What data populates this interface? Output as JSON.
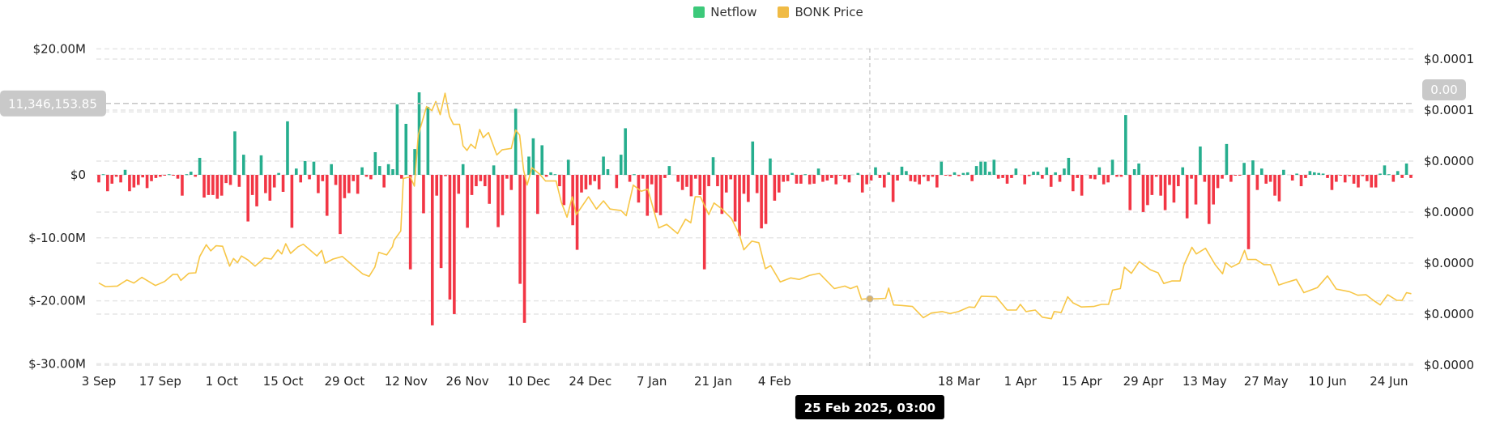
{
  "legend": {
    "items": [
      {
        "label": "Netflow",
        "color": "#3cc97a"
      },
      {
        "label": "BONK Price",
        "color": "#f0bb45"
      }
    ]
  },
  "crosshair": {
    "y_value_label": "11,346,153.85",
    "right_value_label": "0.00",
    "date_label": "25 Feb 2025, 03:00",
    "day": 175.7,
    "netflow_value_m": 11.35
  },
  "chart_data": {
    "type": "bar+line",
    "x_unit": "days since 3 Sep 2024 (daily)",
    "x_ticks": [
      {
        "day": 0,
        "label": "3 Sep"
      },
      {
        "day": 14,
        "label": "17 Sep"
      },
      {
        "day": 28,
        "label": "1 Oct"
      },
      {
        "day": 42,
        "label": "15 Oct"
      },
      {
        "day": 56,
        "label": "29 Oct"
      },
      {
        "day": 70,
        "label": "12 Nov"
      },
      {
        "day": 84,
        "label": "26 Nov"
      },
      {
        "day": 98,
        "label": "10 Dec"
      },
      {
        "day": 112,
        "label": "24 Dec"
      },
      {
        "day": 126,
        "label": "7 Jan"
      },
      {
        "day": 140,
        "label": "21 Jan"
      },
      {
        "day": 154,
        "label": "4 Feb"
      },
      {
        "day": 196,
        "label": "18 Mar"
      },
      {
        "day": 210,
        "label": "1 Apr"
      },
      {
        "day": 224,
        "label": "15 Apr"
      },
      {
        "day": 238,
        "label": "29 Apr"
      },
      {
        "day": 252,
        "label": "13 May"
      },
      {
        "day": 266,
        "label": "27 May"
      },
      {
        "day": 280,
        "label": "10 Jun"
      },
      {
        "day": 294,
        "label": "24 Jun"
      }
    ],
    "left_axis": {
      "unit": "USD millions",
      "range": [
        -30,
        20
      ],
      "ticks": [
        {
          "value": 20,
          "label": "$20.00M"
        },
        {
          "value": 0,
          "label": "$0"
        },
        {
          "value": -10,
          "label": "$-10.00M"
        },
        {
          "value": -20,
          "label": "$-20.00M"
        },
        {
          "value": -30,
          "label": "$-30.00M"
        }
      ],
      "grid_values": [
        20,
        10,
        0,
        -10,
        -20,
        -30
      ]
    },
    "right_axis": {
      "unit": "USD x 1e-5",
      "range": [
        0,
        6
      ],
      "ticks": [
        {
          "value": 6,
          "label": "$0.0001"
        },
        {
          "value": 5,
          "label": "$0.0001"
        },
        {
          "value": 4,
          "label": "$0.0000"
        },
        {
          "value": 3,
          "label": "$0.0000"
        },
        {
          "value": 2,
          "label": "$0.0000"
        },
        {
          "value": 1,
          "label": "$0.0000"
        },
        {
          "value": 0,
          "label": "$0.0000"
        }
      ]
    },
    "colors": {
      "positive": "#26ae8e",
      "negative": "#f23645",
      "price": "#f7c646",
      "grid": "#e6e6e6",
      "crosshair": "#c4c4c4"
    },
    "series": [
      {
        "name": "Netflow",
        "unit": "USD millions",
        "values": [
          -1.2,
          0.1,
          -2.6,
          -1.4,
          -0.3,
          -1.2,
          0.8,
          -2.6,
          -2.0,
          -1.6,
          -0.4,
          -2.1,
          -1.0,
          -0.5,
          -0.3,
          -0.1,
          0.1,
          -0.1,
          -0.6,
          -3.3,
          0.1,
          0.5,
          -0.3,
          2.7,
          -3.6,
          -3.2,
          -3.2,
          -3.8,
          -3.3,
          -1.3,
          -1.6,
          6.9,
          -1.9,
          3.2,
          -7.4,
          -3.2,
          -5.0,
          3.1,
          -2.9,
          -4.1,
          -2.0,
          0.3,
          -2.7,
          8.5,
          -8.4,
          1.0,
          -1.2,
          2.2,
          -0.7,
          2.1,
          -2.9,
          -1.0,
          -6.5,
          1.7,
          -1.6,
          -9.4,
          -3.7,
          -2.9,
          -1.0,
          -3.0,
          1.2,
          -0.3,
          -0.7,
          3.6,
          1.4,
          -2.0,
          1.7,
          0.9,
          11.2,
          -0.6,
          8.1,
          -15.0,
          4.1,
          13.1,
          -6.1,
          10.8,
          -23.9,
          -3.3,
          -14.8,
          -0.2,
          -19.8,
          -22.1,
          -3.0,
          1.7,
          -8.4,
          -3.2,
          -1.8,
          -1.0,
          -1.8,
          -4.6,
          1.5,
          -8.3,
          -6.4,
          -0.6,
          -2.4,
          10.5,
          -17.3,
          -23.5,
          2.9,
          5.8,
          -6.2,
          4.7,
          -0.3,
          0.4,
          0.1,
          -1.8,
          -4.8,
          2.4,
          -8.0,
          -11.9,
          -2.8,
          -2.3,
          -1.6,
          -1.0,
          -2.3,
          2.9,
          0.9,
          0,
          -2.1,
          3.2,
          7.4,
          -1.1,
          0.1,
          -4.4,
          -0.6,
          -6.5,
          -1.5,
          -6.0,
          -6.4,
          -0.5,
          1.4,
          0,
          -1.1,
          -2.4,
          -1.9,
          -3.4,
          -0.6,
          -3.2,
          -15.0,
          -1.8,
          2.8,
          -1.8,
          -6.2,
          -2.8,
          -0.7,
          -7.4,
          -9.7,
          -3.0,
          -4.3,
          5.3,
          -2.9,
          -8.5,
          -7.8,
          2.6,
          -4.1,
          -2.8,
          -1.1,
          -1.0,
          0.3,
          -1.4,
          -1.4,
          0.1,
          -1.5,
          -1.4,
          1.0,
          -1.1,
          -0.9,
          -0.5,
          -1.5,
          -0.1,
          -0.7,
          -1.2,
          0,
          0.3,
          -2.8,
          -1.5,
          -0.9,
          1.2,
          -0.5,
          -2.0,
          0.4,
          -4.3,
          -0.9,
          1.3,
          0.6,
          -1.0,
          -1.1,
          -1.5,
          -0.3,
          -1.0,
          -0.3,
          -2.0,
          2.1,
          -0.1,
          -0.2,
          0.4,
          -0.2,
          0.3,
          0.4,
          -1.0,
          1.4,
          2.1,
          2.1,
          0.5,
          2.4,
          -0.6,
          -0.5,
          -1.4,
          -0.5,
          1.0,
          0,
          -1.5,
          -0.2,
          0.5,
          0.5,
          -0.6,
          1.2,
          -1.9,
          0.4,
          -1.1,
          1.0,
          2.7,
          -2.6,
          -0.5,
          -3.3,
          0,
          -0.6,
          -0.7,
          1.2,
          -1.5,
          -1.2,
          2.4,
          -0.3,
          -0.3,
          9.5,
          -5.6,
          0.9,
          1.8,
          -5.9,
          -4.8,
          -3.2,
          -0.3,
          -3.3,
          -5.6,
          -1.6,
          -4.4,
          -1.8,
          1.2,
          -6.9,
          -0.6,
          -4.7,
          4.5,
          -1.1,
          -7.8,
          -4.7,
          -2.1,
          -0.6,
          4.9,
          -1.1,
          -0.1,
          -0.1,
          1.9,
          -11.8,
          2.3,
          -2.4,
          1.0,
          -1.4,
          -1.1,
          -3.3,
          -4.2,
          0.8,
          0,
          -0.9,
          0.2,
          -1.8,
          -0.5,
          0.6,
          0.4,
          0.3,
          0.2,
          -0.5,
          -2.4,
          -1.1,
          -0.1,
          -1.2,
          -0.2,
          -1.4,
          -2.0,
          -0.2,
          -1.0,
          -2.0,
          -2.0,
          0.2,
          1.5,
          0.1,
          -1.1,
          0.6,
          -0.5,
          1.8,
          -0.5
        ]
      },
      {
        "name": "BONK Price",
        "unit": "USD x 1e-5",
        "points": [
          [
            0,
            1.61
          ],
          [
            1.5,
            1.54
          ],
          [
            4.2,
            1.55
          ],
          [
            6.4,
            1.67
          ],
          [
            8,
            1.61
          ],
          [
            9.8,
            1.72
          ],
          [
            12.9,
            1.56
          ],
          [
            15,
            1.64
          ],
          [
            16.9,
            1.78
          ],
          [
            17.9,
            1.78
          ],
          [
            18.7,
            1.66
          ],
          [
            20.5,
            1.8
          ],
          [
            22.1,
            1.81
          ],
          [
            23,
            2.13
          ],
          [
            24.5,
            2.36
          ],
          [
            25.5,
            2.24
          ],
          [
            26.7,
            2.34
          ],
          [
            28.2,
            2.33
          ],
          [
            29.8,
            1.94
          ],
          [
            30.7,
            2.09
          ],
          [
            31.6,
            2.01
          ],
          [
            32.5,
            2.14
          ],
          [
            34,
            2.06
          ],
          [
            35.6,
            1.94
          ],
          [
            37.7,
            2.1
          ],
          [
            39.3,
            2.08
          ],
          [
            40.8,
            2.26
          ],
          [
            41.7,
            2.18
          ],
          [
            42.6,
            2.38
          ],
          [
            43.7,
            2.19
          ],
          [
            45.4,
            2.32
          ],
          [
            46.6,
            2.37
          ],
          [
            49.7,
            2.14
          ],
          [
            50.8,
            2.25
          ],
          [
            51.6,
            2.0
          ],
          [
            53.4,
            2.08
          ],
          [
            55.5,
            2.13
          ],
          [
            58.3,
            1.92
          ],
          [
            60.1,
            1.79
          ],
          [
            61.6,
            1.74
          ],
          [
            62.9,
            1.92
          ],
          [
            63.8,
            2.21
          ],
          [
            65.6,
            2.16
          ],
          [
            66.9,
            2.32
          ],
          [
            67.3,
            2.45
          ],
          [
            68.8,
            2.63
          ],
          [
            69.4,
            3.66
          ],
          [
            71,
            3.69
          ],
          [
            71.9,
            3.51
          ],
          [
            72.8,
            4.51
          ],
          [
            74.7,
            5.07
          ],
          [
            75.9,
            4.99
          ],
          [
            76.8,
            5.17
          ],
          [
            77.8,
            4.91
          ],
          [
            78.9,
            5.33
          ],
          [
            79.9,
            4.88
          ],
          [
            80.8,
            4.72
          ],
          [
            82.2,
            4.72
          ],
          [
            83,
            4.3
          ],
          [
            83.9,
            4.21
          ],
          [
            84.8,
            4.33
          ],
          [
            85.8,
            4.25
          ],
          [
            86.8,
            4.62
          ],
          [
            87.6,
            4.46
          ],
          [
            88.8,
            4.56
          ],
          [
            90.7,
            4.12
          ],
          [
            91.9,
            4.22
          ],
          [
            94,
            4.25
          ],
          [
            95,
            4.61
          ],
          [
            95.9,
            4.51
          ],
          [
            96.8,
            3.82
          ],
          [
            97.6,
            3.53
          ],
          [
            98.7,
            3.87
          ],
          [
            100.5,
            3.74
          ],
          [
            101.8,
            3.61
          ],
          [
            104.2,
            3.61
          ],
          [
            105.4,
            3.19
          ],
          [
            106.7,
            2.9
          ],
          [
            107.9,
            3.3
          ],
          [
            108.8,
            2.95
          ],
          [
            111.6,
            3.3
          ],
          [
            113.4,
            3.06
          ],
          [
            115,
            3.22
          ],
          [
            116.5,
            3.06
          ],
          [
            119,
            3.03
          ],
          [
            120.2,
            2.93
          ],
          [
            121.8,
            3.53
          ],
          [
            123.6,
            3.41
          ],
          [
            125.1,
            3.45
          ],
          [
            127.6,
            2.69
          ],
          [
            129.4,
            2.76
          ],
          [
            131.9,
            2.58
          ],
          [
            133.7,
            2.86
          ],
          [
            134.9,
            2.79
          ],
          [
            135.9,
            3.3
          ],
          [
            137.1,
            3.3
          ],
          [
            139,
            2.95
          ],
          [
            140.2,
            3.18
          ],
          [
            142,
            3.06
          ],
          [
            144.2,
            2.87
          ],
          [
            146,
            2.55
          ],
          [
            147,
            2.26
          ],
          [
            148.8,
            2.43
          ],
          [
            150.4,
            2.4
          ],
          [
            151.9,
            1.89
          ],
          [
            153.1,
            1.95
          ],
          [
            155.3,
            1.63
          ],
          [
            157.7,
            1.71
          ],
          [
            159.6,
            1.68
          ],
          [
            162,
            1.76
          ],
          [
            164.2,
            1.8
          ],
          [
            167.6,
            1.5
          ],
          [
            170,
            1.55
          ],
          [
            171.3,
            1.5
          ],
          [
            172.8,
            1.55
          ],
          [
            173.8,
            1.29
          ],
          [
            175,
            1.3
          ],
          [
            177.4,
            1.3
          ],
          [
            179.3,
            1.31
          ],
          [
            180,
            1.51
          ],
          [
            181.1,
            1.18
          ],
          [
            182.9,
            1.17
          ],
          [
            185.4,
            1.15
          ],
          [
            187.9,
            0.93
          ],
          [
            189.7,
            1.02
          ],
          [
            192.2,
            1.05
          ],
          [
            194,
            1.01
          ],
          [
            195.9,
            1.05
          ],
          [
            198.3,
            1.14
          ],
          [
            199.6,
            1.13
          ],
          [
            201.1,
            1.35
          ],
          [
            204.5,
            1.34
          ],
          [
            207,
            1.08
          ],
          [
            209.1,
            1.08
          ],
          [
            210,
            1.19
          ],
          [
            211.3,
            1.05
          ],
          [
            213.4,
            1.08
          ],
          [
            215,
            0.94
          ],
          [
            217.1,
            0.91
          ],
          [
            217.7,
            1.05
          ],
          [
            219.3,
            1.03
          ],
          [
            220.8,
            1.34
          ],
          [
            222,
            1.22
          ],
          [
            223.9,
            1.14
          ],
          [
            226.7,
            1.15
          ],
          [
            228.5,
            1.19
          ],
          [
            230.1,
            1.19
          ],
          [
            231,
            1.47
          ],
          [
            232.8,
            1.5
          ],
          [
            233.7,
            1.92
          ],
          [
            235.3,
            1.8
          ],
          [
            237.1,
            2.03
          ],
          [
            239.6,
            1.87
          ],
          [
            241.4,
            1.81
          ],
          [
            242.7,
            1.6
          ],
          [
            244.5,
            1.65
          ],
          [
            246.4,
            1.65
          ],
          [
            247.3,
            1.97
          ],
          [
            249.1,
            2.31
          ],
          [
            250.1,
            2.18
          ],
          [
            252.2,
            2.29
          ],
          [
            254.4,
            1.97
          ],
          [
            256.1,
            1.79
          ],
          [
            256.8,
            2.01
          ],
          [
            258.1,
            1.92
          ],
          [
            259.9,
            2.0
          ],
          [
            261.1,
            2.25
          ],
          [
            261.8,
            2.07
          ],
          [
            263.7,
            2.07
          ],
          [
            265.5,
            1.97
          ],
          [
            267,
            1.97
          ],
          [
            268.9,
            1.57
          ],
          [
            271,
            1.63
          ],
          [
            272.9,
            1.68
          ],
          [
            274.6,
            1.42
          ],
          [
            277.7,
            1.52
          ],
          [
            280,
            1.75
          ],
          [
            282,
            1.49
          ],
          [
            285,
            1.44
          ],
          [
            286.9,
            1.37
          ],
          [
            288.8,
            1.38
          ],
          [
            290.6,
            1.26
          ],
          [
            292,
            1.18
          ],
          [
            293.7,
            1.38
          ],
          [
            295.8,
            1.27
          ],
          [
            297,
            1.27
          ],
          [
            298,
            1.42
          ],
          [
            299.1,
            1.4
          ]
        ]
      }
    ]
  }
}
